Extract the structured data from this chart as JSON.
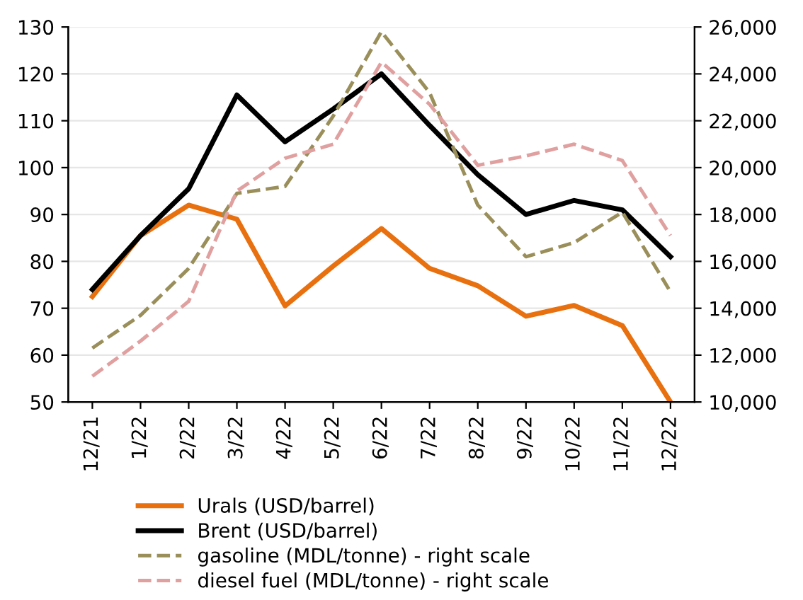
{
  "chart_data": {
    "type": "line",
    "categories": [
      "12/21",
      "1/22",
      "2/22",
      "3/22",
      "4/22",
      "5/22",
      "6/22",
      "7/22",
      "8/22",
      "9/22",
      "10/22",
      "11/22",
      "12/22"
    ],
    "series": [
      {
        "name": "Urals (USD/barrel)",
        "color": "#e8700f",
        "line_style": "solid",
        "values": [
          72.5,
          85.5,
          92,
          89,
          70.5,
          79,
          87,
          78.5,
          74.8,
          68.3,
          70.6,
          66.3,
          50
        ]
      },
      {
        "name": "Brent (USD/barrel)",
        "color": "#000000",
        "line_style": "solid",
        "values": [
          74,
          85.5,
          95.5,
          115.5,
          105.5,
          112.5,
          120,
          109,
          98.5,
          90,
          93,
          91,
          81
        ]
      },
      {
        "name": "gasoline (MDL/tonne) - right scale",
        "color": "#9a8f5a",
        "line_style": "dashed",
        "axis": "y2",
        "values": [
          12300,
          13700,
          15700,
          18900,
          19200,
          22200,
          25800,
          23200,
          18400,
          16200,
          16800,
          18100,
          14700
        ]
      },
      {
        "name": "diesel fuel (MDL/tonne) - right scale",
        "color": "#e0a0a0",
        "line_style": "dashed",
        "axis": "y2",
        "values": [
          11100,
          12600,
          14300,
          19000,
          20400,
          21000,
          24500,
          22700,
          20100,
          20500,
          21000,
          20300,
          17100
        ]
      }
    ],
    "ylim": [
      50,
      130
    ],
    "yticks": [
      50,
      60,
      70,
      80,
      90,
      100,
      110,
      120,
      130
    ],
    "y2lim": [
      10000,
      26000
    ],
    "y2ticks": [
      {
        "value": 10000,
        "label": "10,000"
      },
      {
        "value": 12000,
        "label": "12,000"
      },
      {
        "value": 14000,
        "label": "14,000"
      },
      {
        "value": 16000,
        "label": "16,000"
      },
      {
        "value": 18000,
        "label": "18,000"
      },
      {
        "value": 20000,
        "label": "20,000"
      },
      {
        "value": 22000,
        "label": "22,000"
      },
      {
        "value": 24000,
        "label": "24,000"
      },
      {
        "value": 26000,
        "label": "26,000"
      }
    ],
    "grid": "y",
    "legend": "bottom"
  }
}
